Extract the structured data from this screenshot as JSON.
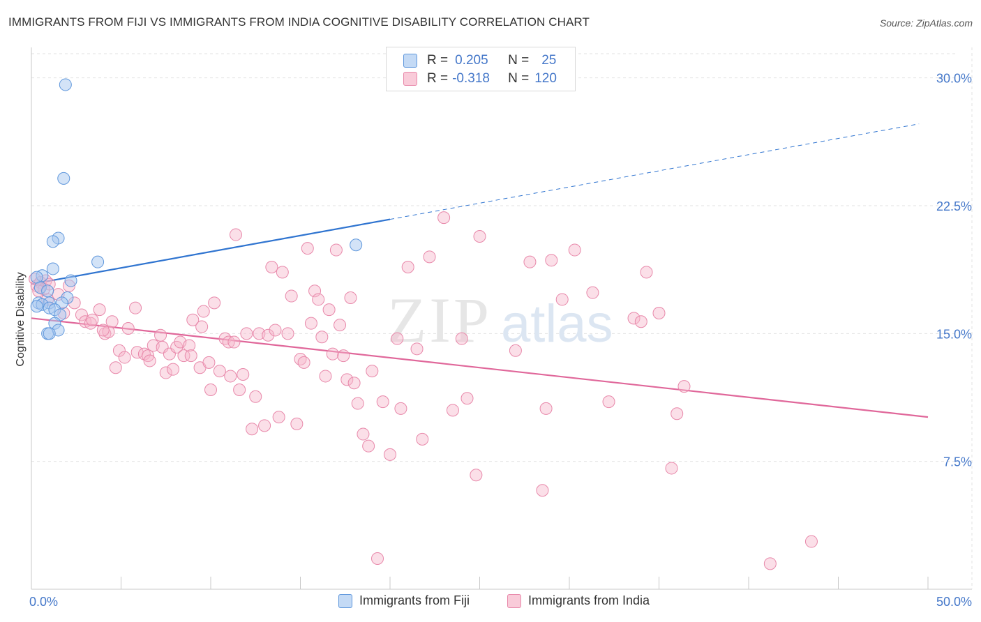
{
  "header": {
    "title": "IMMIGRANTS FROM FIJI VS IMMIGRANTS FROM INDIA COGNITIVE DISABILITY CORRELATION CHART",
    "source": "Source: ZipAtlas.com"
  },
  "legend": {
    "fiji": {
      "r_label": "R =",
      "r_value": "0.205",
      "n_label": "N =",
      "n_value": "25"
    },
    "india": {
      "r_label": "R =",
      "r_value": "-0.318",
      "n_label": "N =",
      "n_value": "120"
    }
  },
  "watermark": {
    "zip": "ZIP",
    "atlas": "atlas"
  },
  "colors": {
    "fiji_fill": "#a8c8f0",
    "fiji_stroke": "#5f97dc",
    "fiji_line": "#2f74d0",
    "india_fill": "#f6b8cc",
    "india_stroke": "#e888aa",
    "india_line": "#e0679a",
    "tick_text": "#4477c9",
    "grid": "#e2e2e2"
  },
  "chart_data": {
    "type": "scatter",
    "title": "IMMIGRANTS FROM FIJI VS IMMIGRANTS FROM INDIA COGNITIVE DISABILITY CORRELATION CHART",
    "xlabel": "",
    "ylabel": "Cognitive Disability",
    "xlim": [
      0,
      50
    ],
    "ylim": [
      0,
      31.5
    ],
    "x_tick_labels": [
      "0.0%",
      "50.0%"
    ],
    "y_ticks": [
      7.5,
      15.0,
      22.5,
      30.0
    ],
    "y_tick_labels": [
      "7.5%",
      "15.0%",
      "22.5%",
      "30.0%"
    ],
    "grid": true,
    "legend_position": "top-center",
    "series": [
      {
        "name": "Immigrants from Fiji",
        "r": 0.205,
        "n": 25,
        "trend": {
          "x0": 0,
          "y0": 17.9,
          "x1": 20,
          "y1": 21.7,
          "extended_to_x": 49.5,
          "extended_y": 27.3
        },
        "points": [
          [
            1.9,
            29.6
          ],
          [
            1.8,
            24.1
          ],
          [
            1.5,
            20.6
          ],
          [
            1.2,
            20.4
          ],
          [
            18.1,
            20.2
          ],
          [
            3.7,
            19.2
          ],
          [
            1.2,
            18.8
          ],
          [
            0.6,
            18.4
          ],
          [
            0.3,
            18.3
          ],
          [
            2.2,
            18.1
          ],
          [
            0.5,
            17.7
          ],
          [
            0.9,
            17.5
          ],
          [
            2.0,
            17.1
          ],
          [
            0.4,
            16.8
          ],
          [
            1.0,
            16.8
          ],
          [
            1.7,
            16.8
          ],
          [
            0.6,
            16.7
          ],
          [
            0.3,
            16.6
          ],
          [
            1.0,
            16.5
          ],
          [
            1.3,
            16.4
          ],
          [
            1.6,
            16.1
          ],
          [
            1.3,
            15.6
          ],
          [
            1.5,
            15.2
          ],
          [
            0.9,
            15.0
          ],
          [
            1.0,
            15.0
          ]
        ]
      },
      {
        "name": "Immigrants from India",
        "r": -0.318,
        "n": 120,
        "trend": {
          "x0": 0,
          "y0": 15.9,
          "x1": 50,
          "y1": 10.1
        },
        "points": [
          [
            0.2,
            18.2
          ],
          [
            0.5,
            18.0
          ],
          [
            0.8,
            18.1
          ],
          [
            0.3,
            17.8
          ],
          [
            0.7,
            17.6
          ],
          [
            1.0,
            17.9
          ],
          [
            2.1,
            17.8
          ],
          [
            1.5,
            17.3
          ],
          [
            0.4,
            17.5
          ],
          [
            0.9,
            17.0
          ],
          [
            2.4,
            16.8
          ],
          [
            1.8,
            16.2
          ],
          [
            2.8,
            16.1
          ],
          [
            3.0,
            15.7
          ],
          [
            3.3,
            15.6
          ],
          [
            3.4,
            15.8
          ],
          [
            3.8,
            16.4
          ],
          [
            4.5,
            15.7
          ],
          [
            4.1,
            15.0
          ],
          [
            4.3,
            15.1
          ],
          [
            4.0,
            15.2
          ],
          [
            5.4,
            15.3
          ],
          [
            5.8,
            16.5
          ],
          [
            4.9,
            14.0
          ],
          [
            5.2,
            13.6
          ],
          [
            4.7,
            13.0
          ],
          [
            5.9,
            13.9
          ],
          [
            6.3,
            13.8
          ],
          [
            6.5,
            13.7
          ],
          [
            6.6,
            13.4
          ],
          [
            6.8,
            14.3
          ],
          [
            7.2,
            14.9
          ],
          [
            7.3,
            14.2
          ],
          [
            7.5,
            12.7
          ],
          [
            7.7,
            13.8
          ],
          [
            7.9,
            12.9
          ],
          [
            8.1,
            14.2
          ],
          [
            8.3,
            14.5
          ],
          [
            8.5,
            13.7
          ],
          [
            8.8,
            14.3
          ],
          [
            8.9,
            13.7
          ],
          [
            9.0,
            15.8
          ],
          [
            9.4,
            13.0
          ],
          [
            9.5,
            15.4
          ],
          [
            9.6,
            16.3
          ],
          [
            9.9,
            13.3
          ],
          [
            10.0,
            11.7
          ],
          [
            10.2,
            16.8
          ],
          [
            10.5,
            12.8
          ],
          [
            10.8,
            14.7
          ],
          [
            11.0,
            14.5
          ],
          [
            11.1,
            12.5
          ],
          [
            11.3,
            14.5
          ],
          [
            11.4,
            20.8
          ],
          [
            11.6,
            11.7
          ],
          [
            11.8,
            12.6
          ],
          [
            12.0,
            15.0
          ],
          [
            12.3,
            9.4
          ],
          [
            12.5,
            11.3
          ],
          [
            12.7,
            15.0
          ],
          [
            13.0,
            9.6
          ],
          [
            13.2,
            14.9
          ],
          [
            13.4,
            18.9
          ],
          [
            13.6,
            15.2
          ],
          [
            13.8,
            10.1
          ],
          [
            14.0,
            18.6
          ],
          [
            14.3,
            15.0
          ],
          [
            14.5,
            17.2
          ],
          [
            14.8,
            9.7
          ],
          [
            15.0,
            13.5
          ],
          [
            15.2,
            13.3
          ],
          [
            15.4,
            20.0
          ],
          [
            15.6,
            15.6
          ],
          [
            15.8,
            17.5
          ],
          [
            16.0,
            17.0
          ],
          [
            16.2,
            14.8
          ],
          [
            16.4,
            12.5
          ],
          [
            16.6,
            16.4
          ],
          [
            16.8,
            13.8
          ],
          [
            17.0,
            19.9
          ],
          [
            17.2,
            15.5
          ],
          [
            17.4,
            13.7
          ],
          [
            17.6,
            12.3
          ],
          [
            17.8,
            17.1
          ],
          [
            18.0,
            12.1
          ],
          [
            18.2,
            10.9
          ],
          [
            18.5,
            9.1
          ],
          [
            18.8,
            8.4
          ],
          [
            19.0,
            12.8
          ],
          [
            19.3,
            1.8
          ],
          [
            19.6,
            11.0
          ],
          [
            20.0,
            7.9
          ],
          [
            20.4,
            14.7
          ],
          [
            20.6,
            10.6
          ],
          [
            21.0,
            18.9
          ],
          [
            21.5,
            14.1
          ],
          [
            21.8,
            8.8
          ],
          [
            22.2,
            19.5
          ],
          [
            23.0,
            21.8
          ],
          [
            23.5,
            10.5
          ],
          [
            24.0,
            14.7
          ],
          [
            24.3,
            11.2
          ],
          [
            24.8,
            6.7
          ],
          [
            25.0,
            20.7
          ],
          [
            27.0,
            14.0
          ],
          [
            27.8,
            19.2
          ],
          [
            28.5,
            5.8
          ],
          [
            28.7,
            10.6
          ],
          [
            29.0,
            19.3
          ],
          [
            29.6,
            17.0
          ],
          [
            30.3,
            19.9
          ],
          [
            31.3,
            17.4
          ],
          [
            32.2,
            11.0
          ],
          [
            33.6,
            15.9
          ],
          [
            34.3,
            18.6
          ],
          [
            35.0,
            16.2
          ],
          [
            35.7,
            7.1
          ],
          [
            36.0,
            10.3
          ],
          [
            36.4,
            11.9
          ],
          [
            41.2,
            1.5
          ],
          [
            43.5,
            2.8
          ],
          [
            34.0,
            15.7
          ]
        ]
      }
    ]
  },
  "bottom_legend": {
    "fiji": "Immigrants from Fiji",
    "india": "Immigrants from India"
  }
}
